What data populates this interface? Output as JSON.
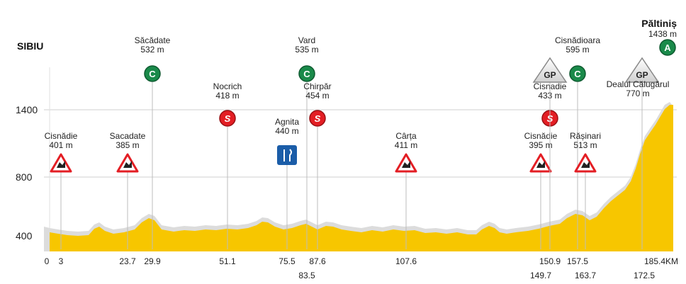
{
  "start": {
    "name": "SIBIU"
  },
  "finish": {
    "name": "Păltiniș",
    "altitude": "1438 m",
    "badge": "A"
  },
  "y_axis": {
    "ticks": [
      400,
      800,
      1400
    ]
  },
  "x_axis": {
    "ticks": [
      "0",
      "3",
      "23.7",
      "29.9",
      "51.1",
      "75.5",
      "87.6",
      "107.6",
      "150.9",
      "157.5",
      "185.4KM"
    ],
    "ticks_lower": [
      "83.5",
      "149.7",
      "163.7",
      "172.5"
    ]
  },
  "points": [
    {
      "name": "Cisnădie",
      "alt": "401 m",
      "type": "warning",
      "km": 3
    },
    {
      "name": "Sacadate",
      "alt": "385 m",
      "type": "warning",
      "km": 23.7
    },
    {
      "name": "Săcădate",
      "alt": "532 m",
      "type": "C",
      "km": 29.9
    },
    {
      "name": "Nocrich",
      "alt": "418 m",
      "type": "S",
      "km": 51.1
    },
    {
      "name": "Agnita",
      "alt": "440 m",
      "type": "feed",
      "km": 75.5
    },
    {
      "name": "Vard",
      "alt": "535 m",
      "type": "C",
      "km": 83.5
    },
    {
      "name": "Chirpăr",
      "alt": "454 m",
      "type": "S",
      "km": 87.6
    },
    {
      "name": "Cârța",
      "alt": "411 m",
      "type": "warning",
      "km": 107.6
    },
    {
      "name": "Cisnădie",
      "alt": "395 m",
      "type": "warning",
      "km": 149.7
    },
    {
      "name": "Cisnadie",
      "alt": "433 m",
      "type": "S",
      "km": 150.9
    },
    {
      "name": "Cisnădioara",
      "alt": "595 m",
      "type": "C",
      "km": 157.5
    },
    {
      "name": "",
      "alt": "",
      "type": "GP",
      "km": 157.5
    },
    {
      "name": "Rășinari",
      "alt": "513 m",
      "type": "warning",
      "km": 163.7
    },
    {
      "name": "Dealul Călugărul",
      "alt": "770 m",
      "type": "GP",
      "km": 172.5
    }
  ],
  "badges": {
    "sprint": "S",
    "climb_category": "C",
    "gp": "GP"
  },
  "colors": {
    "profile": "#f7c600",
    "shadow": "#dcdcdc",
    "sprint": "#e31e24",
    "climb": "#1a8a4a",
    "feed": "#1b5da8",
    "warning": "#e31e24"
  }
}
